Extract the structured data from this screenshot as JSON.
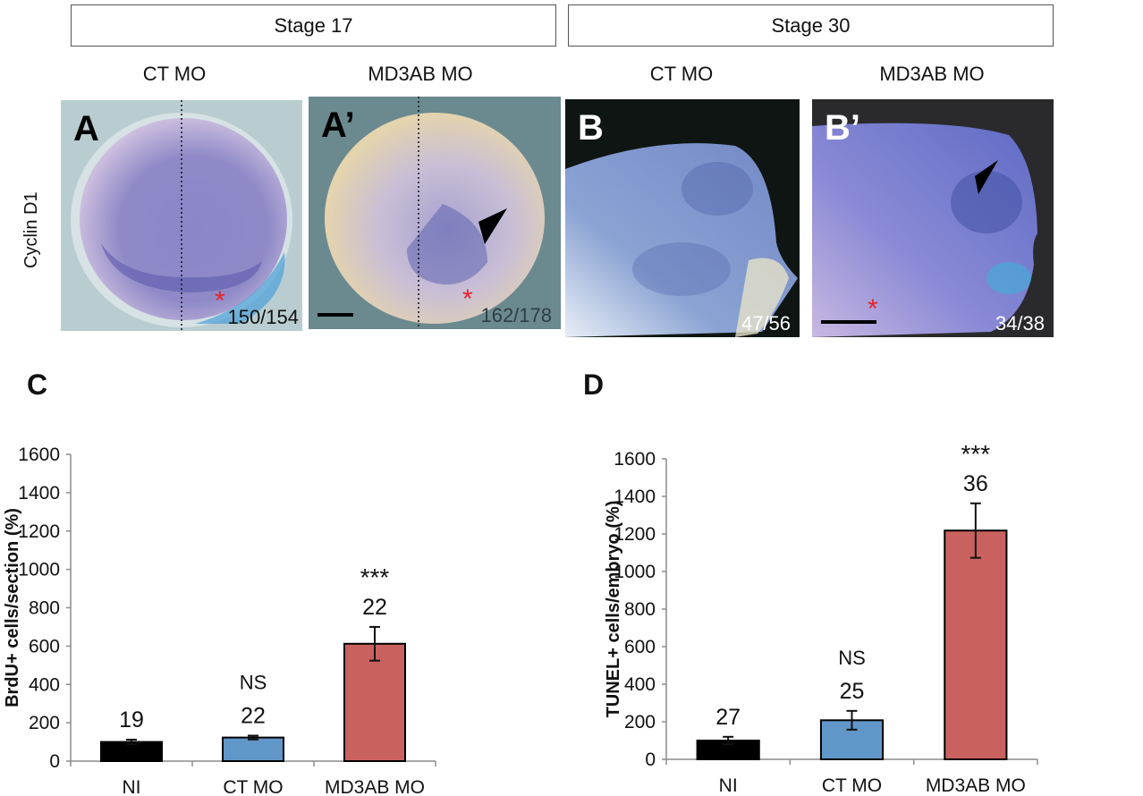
{
  "figure": {
    "stages": [
      {
        "label": "Stage 17"
      },
      {
        "label": "Stage 30"
      }
    ],
    "conditions": [
      "CT MO",
      "MD3AB MO",
      "CT MO",
      "MD3AB MO"
    ],
    "row_label": "Cyclin D1",
    "panels": [
      {
        "letter": "A",
        "ratio": "150/154",
        "condition": "CT MO",
        "stage": "Stage 17"
      },
      {
        "letter": "A’",
        "ratio": "162/178",
        "condition": "MD3AB MO",
        "stage": "Stage 17"
      },
      {
        "letter": "B",
        "ratio": "47/56",
        "condition": "CT MO",
        "stage": "Stage 30"
      },
      {
        "letter": "B’",
        "ratio": "34/38",
        "condition": "MD3AB MO",
        "stage": "Stage 30"
      }
    ],
    "colors": {
      "ni": "#000000",
      "ct": "#6196c9",
      "md3ab": "#c9625f",
      "asterisk": "#e8212a"
    }
  },
  "chart_data": [
    {
      "panel": "C",
      "type": "bar",
      "categories": [
        "NI",
        "CT MO",
        "MD3AB MO"
      ],
      "values": [
        100,
        123,
        612
      ],
      "errors": [
        12,
        10,
        88
      ],
      "n_labels": [
        "19",
        "22",
        "22"
      ],
      "significance": [
        "",
        "NS",
        "***"
      ],
      "title": "",
      "xlabel": "",
      "ylabel": "BrdU+ cells/section (%)",
      "ylim": [
        0,
        1600
      ],
      "yticks": [
        "0",
        "200",
        "400",
        "600",
        "800",
        "1000",
        "1200",
        "1400",
        "1600"
      ],
      "grid": false
    },
    {
      "panel": "D",
      "type": "bar",
      "categories": [
        "NI",
        "CT MO",
        "MD3AB MO"
      ],
      "values": [
        100,
        208,
        1218
      ],
      "errors": [
        20,
        50,
        145
      ],
      "n_labels": [
        "27",
        "25",
        "36"
      ],
      "significance": [
        "",
        "NS",
        "***"
      ],
      "title": "",
      "xlabel": "",
      "ylabel": "TUNEL+ cells/embryo (%)",
      "ylim": [
        0,
        1600
      ],
      "yticks": [
        "0",
        "200",
        "400",
        "600",
        "800",
        "1000",
        "1200",
        "1400",
        "1600"
      ],
      "grid": false
    }
  ]
}
